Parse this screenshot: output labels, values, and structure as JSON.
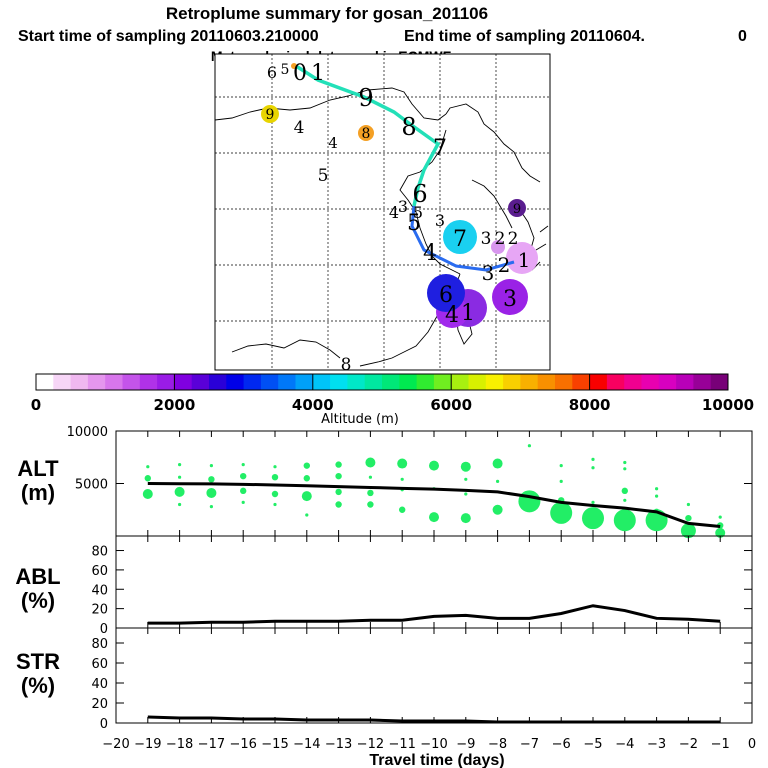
{
  "header": {
    "title": "Retroplume summary for gosan_201106",
    "start_label": "Start time of sampling 20110603.210000",
    "end_label": "End time of sampling 20110604.",
    "end_value": "0",
    "met_label": "Meteorological data used is ECMWF"
  },
  "colors": {
    "track_cyan": "#22e0b8",
    "track_blue": "#2a6cf0",
    "line": "#000000",
    "dots": "#22ee66"
  },
  "chart_data": [
    {
      "type": "map",
      "name": "retroplume-map",
      "track_labels": [
        "1",
        "0",
        "9",
        "8",
        "7",
        "6",
        "5",
        "4",
        "3",
        "2",
        "1"
      ],
      "plumes": [
        {
          "label": "7",
          "color": "#1ad0f0",
          "note": "cyan cluster"
        },
        {
          "label": "6",
          "color": "#1f1fe0",
          "note": "blue cluster"
        },
        {
          "label": "4",
          "color": "#8a2be2",
          "note": "purple cluster"
        },
        {
          "label": "3",
          "color": "#9a22e6",
          "note": "purple cluster"
        },
        {
          "label": "1",
          "color": "#e7a6f5",
          "note": "pink cluster"
        },
        {
          "label": "9",
          "color": "#e8d400",
          "note": "yellow"
        },
        {
          "label": "8",
          "color": "#f4a024",
          "note": "orange"
        },
        {
          "label": "9",
          "color": "#5a1d8f",
          "note": "dark purple"
        }
      ],
      "scattered_labels": [
        "6",
        "5",
        "4",
        "4",
        "5",
        "4",
        "3",
        "5",
        "3",
        "3",
        "2",
        "2",
        "8"
      ]
    },
    {
      "type": "colorbar",
      "title": "Altitude (m)",
      "ticks": [
        "0",
        "2000",
        "4000",
        "6000",
        "8000",
        "10000"
      ],
      "range": [
        0,
        10000
      ],
      "colors": [
        "#ffffff",
        "#f7d6f7",
        "#f0b8f0",
        "#e596ee",
        "#d876ec",
        "#c454ea",
        "#b032e8",
        "#9a1ce6",
        "#8000e0",
        "#5a00d8",
        "#2a00d8",
        "#0000e8",
        "#0028f0",
        "#0050f4",
        "#0078f8",
        "#00a0f8",
        "#00c4f8",
        "#00e0f0",
        "#00e8c8",
        "#00e8a0",
        "#00e878",
        "#00ea50",
        "#30ec30",
        "#70ee20",
        "#a8f010",
        "#d8f000",
        "#f8f000",
        "#f8d000",
        "#f8b000",
        "#f89000",
        "#f87000",
        "#f84000",
        "#f80000",
        "#f80060",
        "#f00090",
        "#e800b0",
        "#d800c0",
        "#b800b8",
        "#980098",
        "#780078"
      ]
    },
    {
      "type": "line",
      "name": "ALT",
      "label_line1": "ALT",
      "label_line2": "(m)",
      "ylim": [
        0,
        10000
      ],
      "yticks": [
        "5000",
        "10000"
      ],
      "x": [
        -19,
        -18,
        -17,
        -16,
        -15,
        -14,
        -13,
        -12,
        -11,
        -10,
        -9,
        -8,
        -7,
        -6,
        -5,
        -4,
        -3,
        -2,
        -1
      ],
      "values": [
        5000,
        4980,
        4960,
        4920,
        4860,
        4780,
        4700,
        4620,
        4540,
        4460,
        4350,
        4200,
        3750,
        3200,
        2900,
        2650,
        2300,
        1200,
        900
      ],
      "dots": [
        {
          "x": -19,
          "pts": [
            [
              6600,
              1
            ],
            [
              5500,
              2
            ],
            [
              4000,
              3
            ]
          ]
        },
        {
          "x": -18,
          "pts": [
            [
              6800,
              1
            ],
            [
              5600,
              1
            ],
            [
              4200,
              3
            ],
            [
              3000,
              1
            ]
          ]
        },
        {
          "x": -17,
          "pts": [
            [
              6700,
              1
            ],
            [
              5400,
              2
            ],
            [
              4100,
              3
            ],
            [
              2800,
              1
            ]
          ]
        },
        {
          "x": -16,
          "pts": [
            [
              6800,
              1
            ],
            [
              5700,
              2
            ],
            [
              4300,
              2
            ],
            [
              3200,
              1
            ]
          ]
        },
        {
          "x": -15,
          "pts": [
            [
              6600,
              1
            ],
            [
              5600,
              2
            ],
            [
              4000,
              2
            ],
            [
              3000,
              1
            ]
          ]
        },
        {
          "x": -14,
          "pts": [
            [
              6700,
              2
            ],
            [
              5500,
              2
            ],
            [
              3800,
              3
            ],
            [
              2000,
              1
            ]
          ]
        },
        {
          "x": -13,
          "pts": [
            [
              6800,
              2
            ],
            [
              5700,
              2
            ],
            [
              4200,
              2
            ],
            [
              3000,
              2
            ]
          ]
        },
        {
          "x": -12,
          "pts": [
            [
              7000,
              3
            ],
            [
              5600,
              1
            ],
            [
              4100,
              2
            ],
            [
              3000,
              2
            ]
          ]
        },
        {
          "x": -11,
          "pts": [
            [
              6900,
              3
            ],
            [
              5400,
              1
            ],
            [
              4400,
              1
            ],
            [
              2500,
              2
            ]
          ]
        },
        {
          "x": -10,
          "pts": [
            [
              6700,
              3
            ],
            [
              4500,
              1
            ],
            [
              1800,
              3
            ]
          ]
        },
        {
          "x": -9,
          "pts": [
            [
              6600,
              3
            ],
            [
              5400,
              1
            ],
            [
              4000,
              1
            ],
            [
              1700,
              3
            ]
          ]
        },
        {
          "x": -8,
          "pts": [
            [
              6900,
              3
            ],
            [
              5200,
              1
            ],
            [
              2500,
              3
            ]
          ]
        },
        {
          "x": -7,
          "pts": [
            [
              8600,
              1
            ],
            [
              3300,
              5
            ]
          ]
        },
        {
          "x": -6,
          "pts": [
            [
              6700,
              1
            ],
            [
              5200,
              1
            ],
            [
              3400,
              2
            ],
            [
              2200,
              5
            ]
          ]
        },
        {
          "x": -5,
          "pts": [
            [
              7300,
              1
            ],
            [
              6500,
              1
            ],
            [
              3200,
              1
            ],
            [
              1700,
              5
            ]
          ]
        },
        {
          "x": -4,
          "pts": [
            [
              7000,
              1
            ],
            [
              6400,
              1
            ],
            [
              4300,
              2
            ],
            [
              3400,
              1
            ],
            [
              1500,
              5
            ]
          ]
        },
        {
          "x": -3,
          "pts": [
            [
              4500,
              1
            ],
            [
              3800,
              1
            ],
            [
              2300,
              2
            ],
            [
              1500,
              5
            ]
          ]
        },
        {
          "x": -2,
          "pts": [
            [
              3000,
              1
            ],
            [
              1700,
              2
            ],
            [
              500,
              4
            ]
          ]
        },
        {
          "x": -1,
          "pts": [
            [
              1800,
              1
            ],
            [
              1000,
              2
            ],
            [
              300,
              3
            ]
          ]
        }
      ]
    },
    {
      "type": "line",
      "name": "ABL",
      "label_line1": "ABL",
      "label_line2": "(%)",
      "ylim": [
        0,
        95
      ],
      "yticks": [
        "0",
        "20",
        "40",
        "60",
        "80"
      ],
      "x": [
        -19,
        -18,
        -17,
        -16,
        -15,
        -14,
        -13,
        -12,
        -11,
        -10,
        -9,
        -8,
        -7,
        -6,
        -5,
        -4,
        -3,
        -2,
        -1
      ],
      "values": [
        5,
        5,
        6,
        6,
        7,
        7,
        7,
        8,
        8,
        12,
        13,
        10,
        10,
        15,
        23,
        18,
        10,
        9,
        7
      ]
    },
    {
      "type": "line",
      "name": "STR",
      "label_line1": "STR",
      "label_line2": "(%)",
      "ylim": [
        0,
        95
      ],
      "yticks": [
        "0",
        "20",
        "40",
        "60",
        "80"
      ],
      "x": [
        -19,
        -18,
        -17,
        -16,
        -15,
        -14,
        -13,
        -12,
        -11,
        -10,
        -9,
        -8,
        -7,
        -6,
        -5,
        -4,
        -3,
        -2,
        -1
      ],
      "values": [
        6,
        5,
        5,
        4,
        4,
        3,
        3,
        3,
        2,
        2,
        2,
        1,
        1,
        1,
        1,
        1,
        1,
        1,
        1
      ]
    }
  ],
  "xaxis": {
    "label": "Travel time (days)",
    "ticks": [
      "−20",
      "−19",
      "−18",
      "−17",
      "−16",
      "−15",
      "−14",
      "−13",
      "−12",
      "−11",
      "−10",
      "−9",
      "−8",
      "−7",
      "−6",
      "−5",
      "−4",
      "−3",
      "−2",
      "−1",
      "0"
    ]
  }
}
